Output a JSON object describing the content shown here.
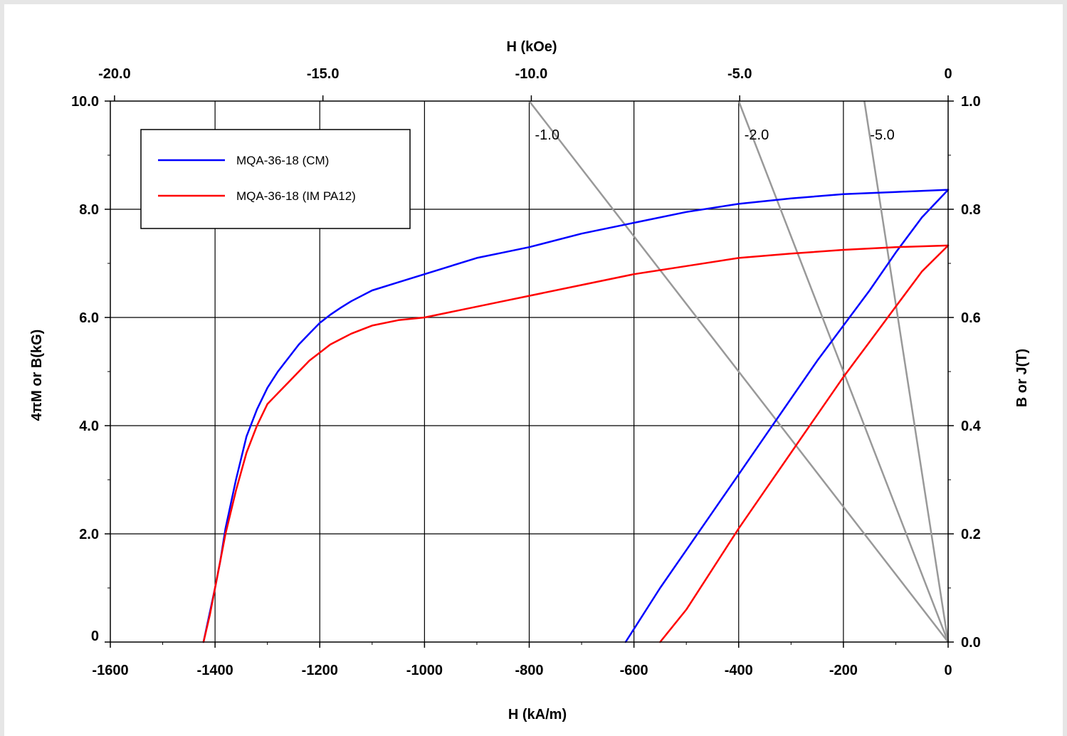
{
  "chart_data": {
    "type": "line",
    "xlabel_bottom": "H (kA/m)",
    "xlabel_top": "H (kOe)",
    "ylabel_left": "4πM or B(kG)",
    "ylabel_right": "B or J(T)",
    "xlim": [
      -1600,
      0
    ],
    "ylim": [
      0,
      10
    ],
    "x_ticks": [
      -1600,
      -1400,
      -1200,
      -1000,
      -800,
      -600,
      -400,
      -200,
      0
    ],
    "x_tick_labels": [
      "-1600",
      "-1400",
      "-1200",
      "-1000",
      "-800",
      "-600",
      "-400",
      "-200",
      "0"
    ],
    "top_ticks": [
      {
        "at": -1592,
        "label": "-20.0"
      },
      {
        "at": -1194,
        "label": "-15.0"
      },
      {
        "at": -796,
        "label": "-10.0"
      },
      {
        "at": -398,
        "label": "-5.0"
      },
      {
        "at": 0,
        "label": "0"
      }
    ],
    "y_left_ticks": [
      0,
      2,
      4,
      6,
      8,
      10
    ],
    "y_left_labels": [
      "0",
      "2.0",
      "4.0",
      "6.0",
      "8.0",
      "10.0"
    ],
    "y_right_labels": [
      "0.0",
      "0.2",
      "0.4",
      "0.6",
      "0.8",
      "1.0"
    ],
    "grid": true,
    "legend_position": "top-left",
    "series": [
      {
        "name": "MQA-36-18 (CM)",
        "color": "#0000ff",
        "segments": [
          {
            "x": [
              -1422,
              -1410,
              -1400,
              -1390,
              -1380,
              -1360,
              -1340,
              -1320,
              -1300,
              -1280,
              -1260,
              -1240,
              -1220,
              -1200,
              -1180,
              -1160,
              -1140,
              -1100,
              -1050,
              -1000,
              -950,
              -900,
              -850,
              -800,
              -700,
              -600,
              -500,
              -400,
              -300,
              -200,
              -100,
              0
            ],
            "y": [
              0,
              0.55,
              1.0,
              1.5,
              2.1,
              3.0,
              3.8,
              4.3,
              4.7,
              5.0,
              5.25,
              5.5,
              5.7,
              5.9,
              6.05,
              6.18,
              6.3,
              6.5,
              6.65,
              6.8,
              6.95,
              7.1,
              7.2,
              7.3,
              7.55,
              7.75,
              7.95,
              8.1,
              8.2,
              8.28,
              8.32,
              8.36
            ]
          },
          {
            "x": [
              -616,
              -550,
              -500,
              -450,
              -400,
              -350,
              -300,
              -250,
              -200,
              -150,
              -100,
              -50,
              0
            ],
            "y": [
              0,
              1.0,
              1.7,
              2.4,
              3.1,
              3.8,
              4.5,
              5.2,
              5.85,
              6.5,
              7.2,
              7.85,
              8.36
            ]
          }
        ]
      },
      {
        "name": "MQA-36-18 (IM PA12)",
        "color": "#ff0000",
        "segments": [
          {
            "x": [
              -1422,
              -1410,
              -1400,
              -1390,
              -1380,
              -1360,
              -1340,
              -1320,
              -1300,
              -1280,
              -1260,
              -1240,
              -1220,
              -1200,
              -1180,
              -1160,
              -1140,
              -1100,
              -1050,
              -1000,
              -950,
              -900,
              -850,
              -800,
              -700,
              -600,
              -500,
              -400,
              -300,
              -200,
              -100,
              0
            ],
            "y": [
              0,
              0.5,
              1.0,
              1.5,
              2.0,
              2.8,
              3.5,
              4.0,
              4.4,
              4.6,
              4.8,
              5.0,
              5.2,
              5.35,
              5.5,
              5.6,
              5.7,
              5.85,
              5.95,
              6.0,
              6.1,
              6.2,
              6.3,
              6.4,
              6.6,
              6.8,
              6.95,
              7.1,
              7.18,
              7.25,
              7.3,
              7.33
            ]
          },
          {
            "x": [
              -550,
              -500,
              -450,
              -400,
              -350,
              -300,
              -250,
              -200,
              -150,
              -100,
              -50,
              0
            ],
            "y": [
              0,
              0.6,
              1.35,
              2.1,
              2.8,
              3.5,
              4.2,
              4.9,
              5.55,
              6.2,
              6.85,
              7.33
            ]
          }
        ]
      }
    ],
    "load_lines": [
      {
        "label": "-1.0",
        "color": "#999999",
        "x": [
          -800,
          0
        ],
        "y": [
          10,
          0
        ]
      },
      {
        "label": "-2.0",
        "color": "#999999",
        "x": [
          -400,
          0
        ],
        "y": [
          10,
          0
        ]
      },
      {
        "label": "-5.0",
        "color": "#999999",
        "x": [
          -160,
          0
        ],
        "y": [
          10,
          0
        ]
      }
    ]
  }
}
